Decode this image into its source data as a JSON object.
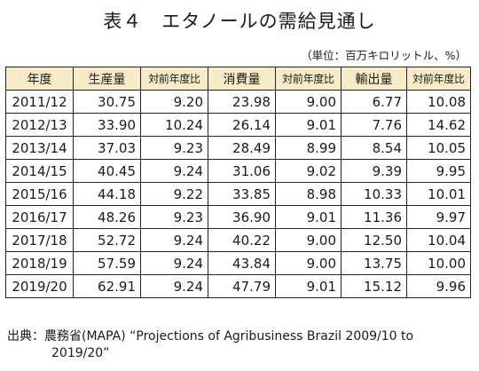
{
  "title": "表４　エタノールの需給見通し",
  "unit": "（単位：百万キロリットル、%）",
  "table": {
    "headers": [
      "年度",
      "生産量",
      "対前年度比",
      "消費量",
      "対前年度比",
      "輸出量",
      "対前年度比"
    ],
    "rows": [
      [
        "2011/12",
        "30.75",
        "9.20",
        "23.98",
        "9.00",
        "6.77",
        "10.08"
      ],
      [
        "2012/13",
        "33.90",
        "10.24",
        "26.14",
        "9.01",
        "7.76",
        "14.62"
      ],
      [
        "2013/14",
        "37.03",
        "9.23",
        "28.49",
        "8.99",
        "8.54",
        "10.05"
      ],
      [
        "2014/15",
        "40.45",
        "9.24",
        "31.06",
        "9.02",
        "9.39",
        "9.95"
      ],
      [
        "2015/16",
        "44.18",
        "9.22",
        "33.85",
        "8.98",
        "10.33",
        "10.01"
      ],
      [
        "2016/17",
        "48.26",
        "9.23",
        "36.90",
        "9.01",
        "11.36",
        "9.97"
      ],
      [
        "2017/18",
        "52.72",
        "9.24",
        "40.22",
        "9.00",
        "12.50",
        "10.04"
      ],
      [
        "2018/19",
        "57.59",
        "9.24",
        "43.84",
        "9.00",
        "13.75",
        "10.00"
      ],
      [
        "2019/20",
        "62.91",
        "9.24",
        "47.79",
        "9.01",
        "15.12",
        "9.96"
      ]
    ]
  },
  "source": {
    "line1": "出典：農務省(MAPA) “Projections of Agribusiness Brazil 2009/10 to",
    "line2": "2019/20”"
  }
}
